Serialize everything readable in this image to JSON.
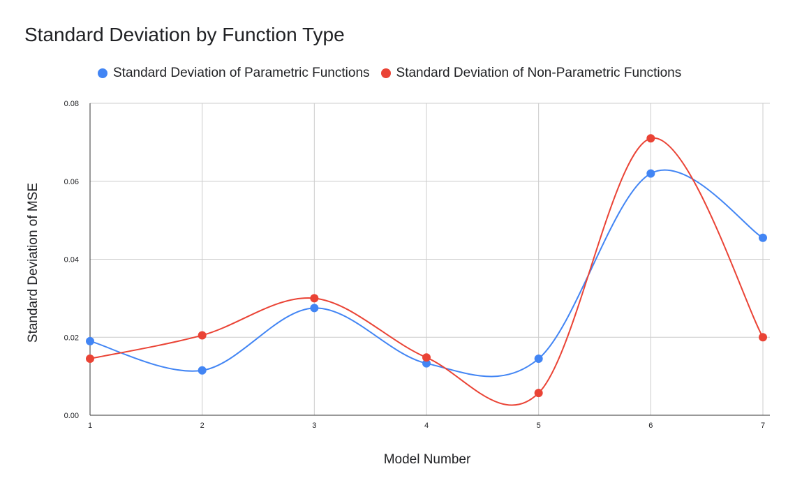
{
  "chart_data": {
    "type": "line",
    "title": "Standard Deviation by Function Type",
    "xlabel": "Model Number",
    "ylabel": "Standard Deviation of MSE",
    "x": [
      1,
      2,
      3,
      4,
      5,
      6,
      7
    ],
    "x_tick_labels": [
      "1",
      "2",
      "3",
      "4",
      "5",
      "6",
      "7"
    ],
    "y_tick_labels": [
      "0.00",
      "0.02",
      "0.04",
      "0.06",
      "0.08"
    ],
    "y_ticks": [
      0,
      0.02,
      0.04,
      0.06,
      0.08
    ],
    "ylim": [
      0,
      0.08
    ],
    "grid": true,
    "smooth": true,
    "legend_position": "top",
    "series": [
      {
        "name": "Standard Deviation of Parametric Functions",
        "color": "#4285F4",
        "values": [
          0.019,
          0.0115,
          0.0275,
          0.0133,
          0.0145,
          0.062,
          0.0455
        ]
      },
      {
        "name": "Standard Deviation of Non-Parametric Functions",
        "color": "#EA4335",
        "values": [
          0.0145,
          0.0205,
          0.03,
          0.0148,
          0.0057,
          0.071,
          0.02
        ]
      }
    ]
  }
}
